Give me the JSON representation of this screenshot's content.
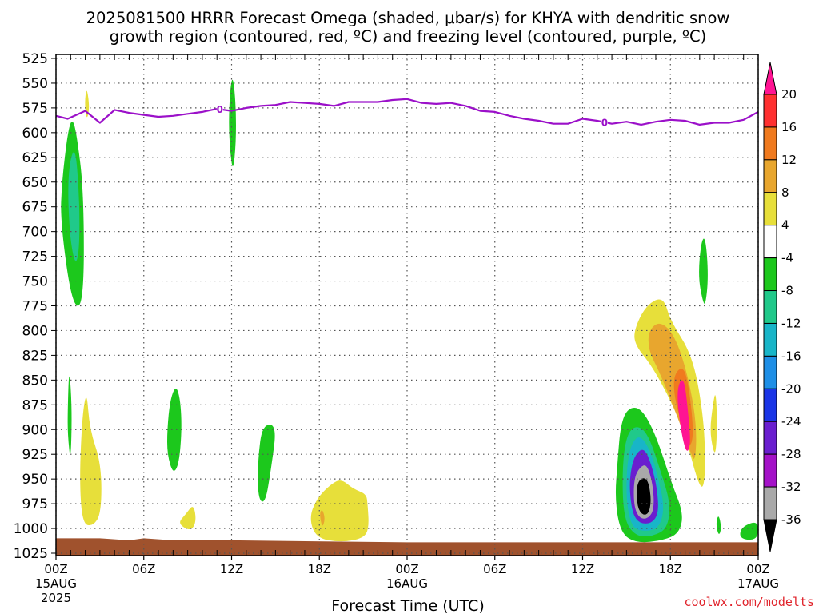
{
  "chart_data": {
    "type": "heatmap",
    "title_line1": "2025081500 HRRR Forecast Omega (shaded, μbar/s) for KHYA with dendritic snow",
    "title_line2": "growth region (contoured, red, ºC) and freezing level (contoured, purple, ºC)",
    "xlabel": "Forecast Time (UTC)",
    "credit": "coolwx.com/modelts",
    "x_hours": [
      0,
      48
    ],
    "y_range": [
      525,
      1025
    ],
    "y_ticks": [
      "525",
      "550",
      "575",
      "600",
      "625",
      "650",
      "675",
      "700",
      "725",
      "750",
      "775",
      "800",
      "825",
      "850",
      "875",
      "900",
      "925",
      "950",
      "975",
      "1000",
      "1025"
    ],
    "x_ticks": [
      {
        "hour": 0,
        "line1": "00Z",
        "line2": "15AUG",
        "line3": "2025"
      },
      {
        "hour": 6,
        "line1": "06Z",
        "line2": "",
        "line3": ""
      },
      {
        "hour": 12,
        "line1": "12Z",
        "line2": "",
        "line3": ""
      },
      {
        "hour": 18,
        "line1": "18Z",
        "line2": "",
        "line3": ""
      },
      {
        "hour": 24,
        "line1": "00Z",
        "line2": "16AUG",
        "line3": ""
      },
      {
        "hour": 30,
        "line1": "06Z",
        "line2": "",
        "line3": ""
      },
      {
        "hour": 36,
        "line1": "12Z",
        "line2": "",
        "line3": ""
      },
      {
        "hour": 42,
        "line1": "18Z",
        "line2": "",
        "line3": ""
      },
      {
        "hour": 48,
        "line1": "00Z",
        "line2": "17AUG",
        "line3": ""
      }
    ],
    "grid": true,
    "colorbar": {
      "position": "right",
      "levels": [
        "20",
        "16",
        "12",
        "8",
        "4",
        "-4",
        "-8",
        "-12",
        "-16",
        "-20",
        "-24",
        "-28",
        "-32",
        "-36"
      ],
      "colors": [
        "#ff1493",
        "#ff3030",
        "#f07a1e",
        "#e8a62e",
        "#e7df3a",
        "#ffffff",
        "#1cc81c",
        "#20c98a",
        "#18b5c8",
        "#1e8fe6",
        "#1a35e6",
        "#6a1ecf",
        "#a412c8",
        "#a9a9a9",
        "#000000"
      ]
    },
    "freezing_level": {
      "color": "#9b10c9",
      "label": "0",
      "label_hours": [
        11.2,
        37.5
      ],
      "points": [
        [
          0,
          583
        ],
        [
          0.8,
          586
        ],
        [
          2,
          578
        ],
        [
          3,
          590
        ],
        [
          4,
          577
        ],
        [
          5,
          580
        ],
        [
          6,
          582
        ],
        [
          7,
          584
        ],
        [
          8,
          583
        ],
        [
          9,
          581
        ],
        [
          10,
          579
        ],
        [
          11,
          576
        ],
        [
          12,
          578
        ],
        [
          13,
          575
        ],
        [
          14,
          573
        ],
        [
          15,
          572
        ],
        [
          16,
          569
        ],
        [
          17,
          570
        ],
        [
          18,
          571
        ],
        [
          19,
          573
        ],
        [
          20,
          569
        ],
        [
          21,
          569
        ],
        [
          22,
          569
        ],
        [
          23,
          567
        ],
        [
          24,
          566
        ],
        [
          25,
          570
        ],
        [
          26,
          571
        ],
        [
          27,
          570
        ],
        [
          28,
          573
        ],
        [
          29,
          578
        ],
        [
          30,
          579
        ],
        [
          31,
          583
        ],
        [
          32,
          586
        ],
        [
          33,
          588
        ],
        [
          34,
          591
        ],
        [
          35,
          591
        ],
        [
          36,
          586
        ],
        [
          37,
          588
        ],
        [
          38,
          591
        ],
        [
          39,
          589
        ],
        [
          40,
          592
        ],
        [
          41,
          589
        ],
        [
          42,
          587
        ],
        [
          43,
          588
        ],
        [
          44,
          592
        ],
        [
          45,
          590
        ],
        [
          46,
          590
        ],
        [
          47,
          587
        ],
        [
          48,
          579
        ]
      ]
    },
    "ground": {
      "color": "#a0522d",
      "points": [
        [
          0,
          1010
        ],
        [
          3,
          1010
        ],
        [
          5,
          1012
        ],
        [
          6,
          1010
        ],
        [
          8,
          1012
        ],
        [
          12,
          1012
        ],
        [
          24,
          1014
        ],
        [
          36,
          1014
        ],
        [
          48,
          1014
        ]
      ]
    },
    "omega_regions": [
      {
        "value": -6,
        "points": [
          [
            0.4,
            650
          ],
          [
            0.8,
            600
          ],
          [
            1.1,
            585
          ],
          [
            1.4,
            600
          ],
          [
            1.9,
            660
          ],
          [
            1.9,
            775
          ],
          [
            1.1,
            775
          ],
          [
            0.3,
            690
          ]
        ]
      },
      {
        "value": -10,
        "points": [
          [
            0.8,
            640
          ],
          [
            1.3,
            610
          ],
          [
            1.6,
            665
          ],
          [
            1.6,
            720
          ],
          [
            1.3,
            735
          ],
          [
            0.9,
            700
          ]
        ]
      },
      {
        "value": -6,
        "points": [
          [
            11.8,
            590
          ],
          [
            11.9,
            555
          ],
          [
            12.1,
            542
          ],
          [
            12.3,
            575
          ],
          [
            12.3,
            610
          ],
          [
            12.1,
            640
          ],
          [
            11.9,
            620
          ]
        ]
      },
      {
        "value": 5,
        "points": [
          [
            1.95,
            570
          ],
          [
            2.1,
            553
          ],
          [
            2.3,
            575
          ],
          [
            2.1,
            588
          ]
        ]
      },
      {
        "value": -6,
        "points": [
          [
            0.8,
            880
          ],
          [
            0.9,
            835
          ],
          [
            1.1,
            880
          ],
          [
            1.0,
            935
          ],
          [
            0.8,
            905
          ]
        ]
      },
      {
        "value": 5,
        "points": [
          [
            1.6,
            950
          ],
          [
            1.8,
            885
          ],
          [
            2.1,
            860
          ],
          [
            2.3,
            900
          ],
          [
            3.1,
            935
          ],
          [
            3.1,
            985
          ],
          [
            2.5,
            998
          ],
          [
            1.8,
            995
          ]
        ]
      },
      {
        "value": -6,
        "points": [
          [
            7.6,
            900
          ],
          [
            7.8,
            870
          ],
          [
            8.2,
            855
          ],
          [
            8.5,
            870
          ],
          [
            8.6,
            900
          ],
          [
            8.4,
            935
          ],
          [
            8.0,
            945
          ],
          [
            7.6,
            925
          ]
        ]
      },
      {
        "value": 5,
        "points": [
          [
            8.3,
            995
          ],
          [
            8.9,
            985
          ],
          [
            9.4,
            975
          ],
          [
            9.6,
            993
          ],
          [
            9.2,
            1003
          ]
        ]
      },
      {
        "value": -6,
        "points": [
          [
            13.8,
            930
          ],
          [
            14.1,
            895
          ],
          [
            15.1,
            895
          ],
          [
            14.7,
            940
          ],
          [
            14.3,
            975
          ],
          [
            13.8,
            970
          ]
        ]
      },
      {
        "value": 5,
        "points": [
          [
            17.3,
            990
          ],
          [
            17.8,
            970
          ],
          [
            18.8,
            955
          ],
          [
            19.5,
            950
          ],
          [
            20.3,
            960
          ],
          [
            21.2,
            965
          ],
          [
            21.3,
            975
          ],
          [
            21.4,
            1000
          ],
          [
            21.0,
            1010
          ],
          [
            19.5,
            1014
          ],
          [
            17.8,
            1010
          ]
        ]
      },
      {
        "value": 5,
        "points": [
          [
            39.5,
            800
          ],
          [
            40.3,
            775
          ],
          [
            41.5,
            765
          ],
          [
            42,
            790
          ],
          [
            43.5,
            825
          ],
          [
            44.2,
            880
          ],
          [
            44.4,
            925
          ],
          [
            44.3,
            960
          ],
          [
            43.9,
            955
          ],
          [
            43.0,
            905
          ],
          [
            42.0,
            870
          ],
          [
            40.7,
            835
          ],
          [
            39.6,
            815
          ]
        ]
      },
      {
        "value": 9,
        "points": [
          [
            40.5,
            800
          ],
          [
            41.3,
            790
          ],
          [
            42.3,
            805
          ],
          [
            43.2,
            845
          ],
          [
            43.8,
            895
          ],
          [
            43.7,
            935
          ],
          [
            43.3,
            920
          ],
          [
            42.3,
            880
          ],
          [
            41.2,
            840
          ],
          [
            40.5,
            820
          ]
        ]
      },
      {
        "value": 13,
        "points": [
          [
            42.2,
            845
          ],
          [
            42.9,
            835
          ],
          [
            43.3,
            860
          ],
          [
            43.6,
            905
          ],
          [
            43.3,
            920
          ],
          [
            42.8,
            895
          ],
          [
            42.3,
            870
          ]
        ]
      },
      {
        "value": 22,
        "points": [
          [
            42.4,
            860
          ],
          [
            42.9,
            845
          ],
          [
            43.2,
            880
          ],
          [
            43.4,
            915
          ],
          [
            43.1,
            925
          ],
          [
            42.7,
            900
          ]
        ]
      },
      {
        "value": -6,
        "points": [
          [
            38.4,
            930
          ],
          [
            38.6,
            895
          ],
          [
            39.1,
            878
          ],
          [
            40,
            878
          ],
          [
            41,
            905
          ],
          [
            42.1,
            955
          ],
          [
            42.9,
            985
          ],
          [
            42.6,
            1005
          ],
          [
            41.5,
            1012
          ],
          [
            39.7,
            1015
          ],
          [
            38.6,
            1005
          ],
          [
            38.2,
            970
          ]
        ]
      },
      {
        "value": -10,
        "points": [
          [
            38.7,
            940
          ],
          [
            39.0,
            905
          ],
          [
            39.7,
            895
          ],
          [
            40.5,
            905
          ],
          [
            41.4,
            945
          ],
          [
            42.0,
            975
          ],
          [
            41.8,
            1000
          ],
          [
            40.8,
            1008
          ],
          [
            39.6,
            1008
          ],
          [
            38.8,
            990
          ]
        ]
      },
      {
        "value": -14,
        "points": [
          [
            39.0,
            940
          ],
          [
            39.3,
            915
          ],
          [
            39.9,
            905
          ],
          [
            40.6,
            920
          ],
          [
            41.2,
            950
          ],
          [
            41.6,
            980
          ],
          [
            41.2,
            1000
          ],
          [
            40.3,
            1003
          ],
          [
            39.4,
            1000
          ],
          [
            39.0,
            975
          ]
        ]
      },
      {
        "value": -26,
        "points": [
          [
            39.3,
            940
          ],
          [
            39.6,
            925
          ],
          [
            40.2,
            918
          ],
          [
            40.7,
            935
          ],
          [
            41.1,
            960
          ],
          [
            41.2,
            985
          ],
          [
            40.7,
            995
          ],
          [
            39.9,
            995
          ],
          [
            39.4,
            985
          ],
          [
            39.2,
            960
          ]
        ]
      },
      {
        "value": -34,
        "points": [
          [
            39.5,
            950
          ],
          [
            39.9,
            938
          ],
          [
            40.4,
            935
          ],
          [
            40.8,
            955
          ],
          [
            40.9,
            980
          ],
          [
            40.5,
            990
          ],
          [
            39.9,
            990
          ],
          [
            39.5,
            978
          ]
        ]
      },
      {
        "value": -38,
        "points": [
          [
            39.7,
            955
          ],
          [
            40.1,
            948
          ],
          [
            40.5,
            952
          ],
          [
            40.7,
            972
          ],
          [
            40.5,
            986
          ],
          [
            40.0,
            986
          ],
          [
            39.7,
            975
          ]
        ]
      },
      {
        "value": 5,
        "points": [
          [
            44.7,
            900
          ],
          [
            44.9,
            875
          ],
          [
            45.1,
            860
          ],
          [
            45.2,
            895
          ],
          [
            45.1,
            925
          ],
          [
            44.9,
            920
          ]
        ]
      },
      {
        "value": -6,
        "points": [
          [
            43.9,
            745
          ],
          [
            44.1,
            710
          ],
          [
            44.4,
            705
          ],
          [
            44.6,
            745
          ],
          [
            44.4,
            775
          ],
          [
            44.2,
            770
          ]
        ]
      },
      {
        "value": -6,
        "points": [
          [
            46.7,
            1008
          ],
          [
            46.9,
            998
          ],
          [
            48,
            992
          ],
          [
            48,
            1010
          ],
          [
            47.2,
            1012
          ]
        ]
      },
      {
        "value": -6,
        "points": [
          [
            45.1,
            995
          ],
          [
            45.3,
            985
          ],
          [
            45.5,
            1000
          ],
          [
            45.3,
            1008
          ]
        ]
      },
      {
        "value": 9,
        "points": [
          [
            18.0,
            985
          ],
          [
            18.2,
            980
          ],
          [
            18.4,
            990
          ],
          [
            18.2,
            1000
          ]
        ]
      }
    ]
  }
}
